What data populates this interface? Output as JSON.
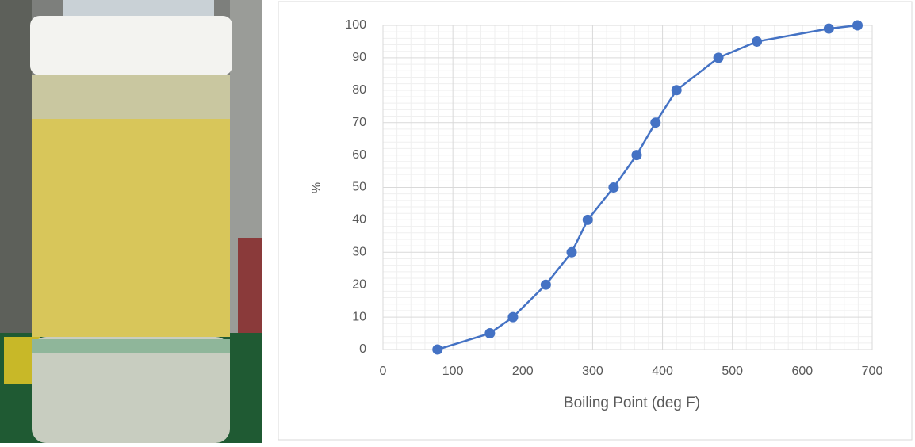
{
  "chart_data": {
    "type": "line",
    "x_label": "Boiling Point (deg F)",
    "y_label": "%",
    "series": [
      {
        "color": "#4472c4",
        "x": [
          78,
          153,
          186,
          233,
          270,
          293,
          330,
          363,
          390,
          420,
          480,
          535,
          638,
          679
        ],
        "values": [
          0,
          5,
          10,
          20,
          30,
          40,
          50,
          60,
          70,
          80,
          90,
          95,
          99,
          100
        ]
      }
    ],
    "xlim": [
      0,
      700
    ],
    "xticks": [
      0,
      100,
      200,
      300,
      400,
      500,
      600,
      700
    ],
    "ylim": [
      0,
      100
    ],
    "yticks": [
      0,
      10,
      20,
      30,
      40,
      50,
      60,
      70,
      80,
      90,
      100
    ],
    "grid": true,
    "minor_grid": true,
    "markers": true
  }
}
